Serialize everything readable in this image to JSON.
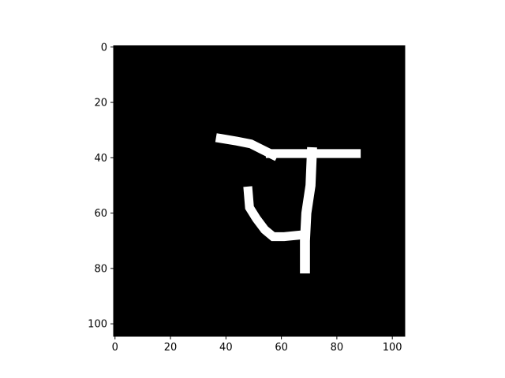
{
  "chart_data": {
    "type": "heatmap",
    "title": "",
    "xlabel": "",
    "ylabel": "",
    "image_size": [
      105,
      105
    ],
    "xlim": [
      -0.5,
      104.5
    ],
    "ylim": [
      104.5,
      -0.5
    ],
    "x_ticks": [
      0,
      20,
      40,
      60,
      80,
      100
    ],
    "y_ticks": [
      0,
      20,
      40,
      60,
      80,
      100
    ],
    "x_tick_labels": [
      "0",
      "20",
      "40",
      "60",
      "80",
      "100"
    ],
    "y_tick_labels": [
      "0",
      "20",
      "40",
      "60",
      "80",
      "100"
    ],
    "colormap": "gray",
    "background_color": "#000000",
    "foreground_color": "#ffffff",
    "grid": false,
    "strokes": [
      {
        "name": "upper-left stroke",
        "points": [
          [
            38,
            33
          ],
          [
            44,
            34
          ],
          [
            49,
            35
          ],
          [
            53,
            37
          ],
          [
            57,
            39
          ]
        ],
        "width": 3.2
      },
      {
        "name": "horizontal bar",
        "points": [
          [
            56,
            38.5
          ],
          [
            87,
            38.5
          ]
        ],
        "width": 3.2
      },
      {
        "name": "vertical stem",
        "points": [
          [
            71,
            38
          ],
          [
            70.5,
            50
          ],
          [
            69,
            60
          ],
          [
            68.5,
            70
          ],
          [
            68.5,
            80
          ]
        ],
        "width": 3.6
      },
      {
        "name": "lower curve",
        "points": [
          [
            48,
            52
          ],
          [
            48.5,
            58
          ],
          [
            51,
            62
          ],
          [
            54,
            66
          ],
          [
            57,
            68.5
          ],
          [
            61,
            68.5
          ],
          [
            66,
            68
          ]
        ],
        "width": 3.2
      }
    ]
  }
}
